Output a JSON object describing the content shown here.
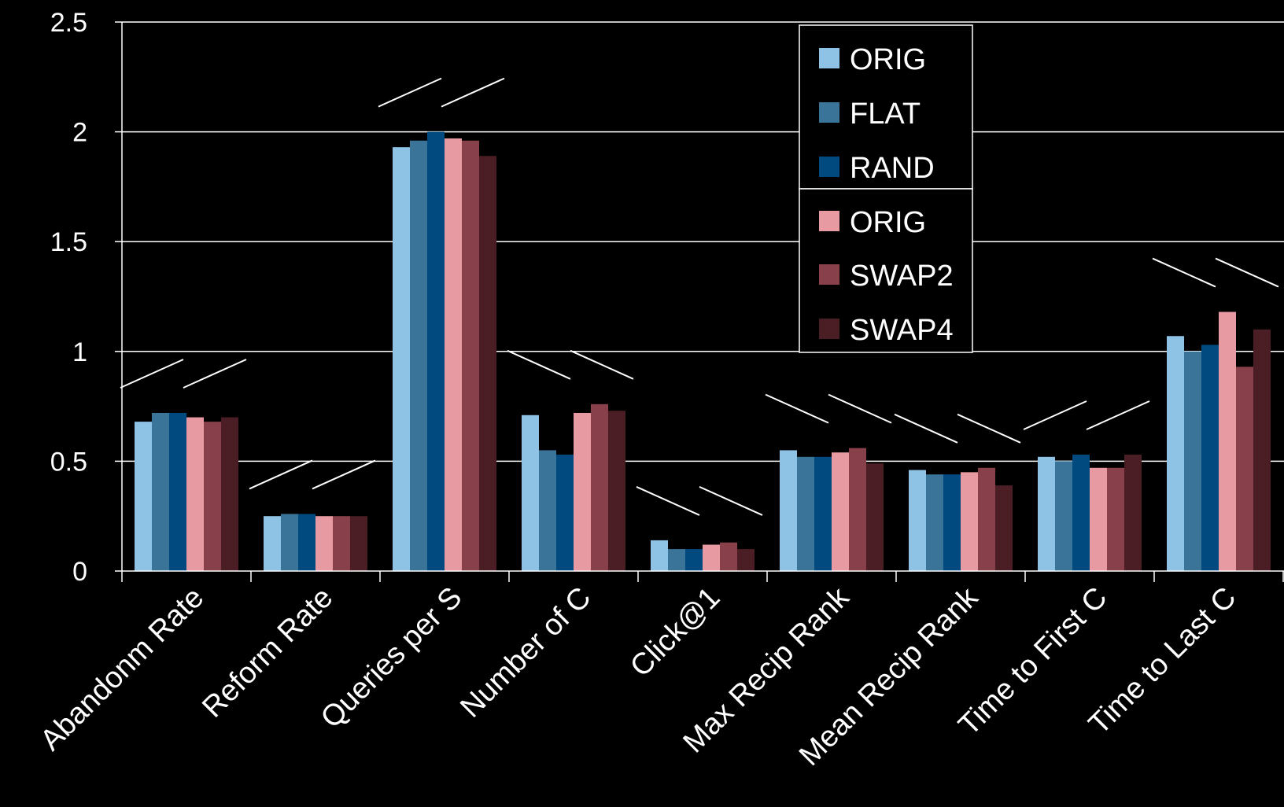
{
  "chart_data": {
    "type": "bar",
    "title": "",
    "xlabel": "",
    "ylabel": "",
    "ylim": [
      0,
      2.5
    ],
    "yticks": [
      "0",
      "0.5",
      "1",
      "1.5",
      "2",
      "2.5"
    ],
    "grid": true,
    "legend_position": "top-center",
    "categories": [
      "Abandonm Rate",
      "Reform Rate",
      "Queries per S",
      "Number of C",
      "Click@1",
      "Max Recip Rank",
      "Mean Recip Rank",
      "Time to First C",
      "Time to Last C"
    ],
    "series": [
      {
        "name": "ORIG",
        "color": "#8ec3e6",
        "values": [
          0.68,
          0.25,
          1.93,
          0.71,
          0.14,
          0.55,
          0.46,
          0.52,
          1.07
        ]
      },
      {
        "name": "FLAT",
        "color": "#3a7499",
        "values": [
          0.72,
          0.26,
          1.96,
          0.55,
          0.1,
          0.52,
          0.44,
          0.5,
          1.0
        ]
      },
      {
        "name": "RAND",
        "color": "#004a7f",
        "values": [
          0.72,
          0.26,
          2.0,
          0.53,
          0.1,
          0.52,
          0.44,
          0.53,
          1.03
        ]
      },
      {
        "name": "ORIG",
        "color": "#e89aa3",
        "values": [
          0.7,
          0.25,
          1.97,
          0.72,
          0.12,
          0.54,
          0.45,
          0.47,
          1.18
        ]
      },
      {
        "name": "SWAP2",
        "color": "#88404a",
        "values": [
          0.68,
          0.25,
          1.96,
          0.76,
          0.13,
          0.56,
          0.47,
          0.47,
          0.93
        ]
      },
      {
        "name": "SWAP4",
        "color": "#4a1e24",
        "values": [
          0.7,
          0.25,
          1.89,
          0.73,
          0.1,
          0.49,
          0.39,
          0.53,
          1.1
        ]
      }
    ],
    "trend_marks": [
      "up",
      "up",
      "up",
      "down",
      "down",
      "down",
      "down",
      "up",
      "down"
    ]
  }
}
